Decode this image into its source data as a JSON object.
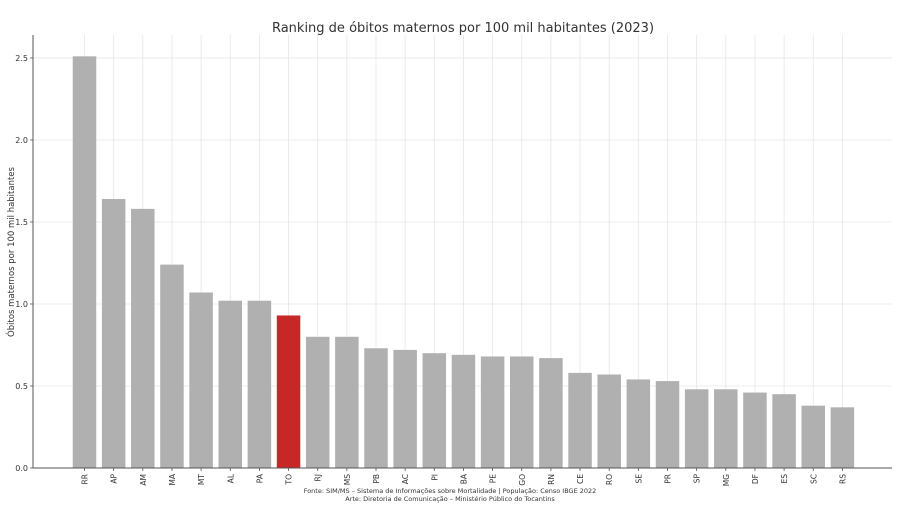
{
  "chart_data": {
    "type": "bar",
    "title": "Ranking de óbitos maternos por 100 mil habitantes (2023)",
    "xlabel": "",
    "ylabel": "Óbitos maternos por 100 mil habitantes",
    "ylim": [
      0,
      2.64
    ],
    "yticks": [
      0.0,
      0.5,
      1.0,
      1.5,
      2.0,
      2.5
    ],
    "ytick_labels": [
      "0.0",
      "0.5",
      "1.0",
      "1.5",
      "2.0",
      "2.5"
    ],
    "grid": true,
    "categories": [
      "RR",
      "AP",
      "AM",
      "MA",
      "MT",
      "AL",
      "PA",
      "TO",
      "RJ",
      "MS",
      "PB",
      "AC",
      "PI",
      "BA",
      "PE",
      "GO",
      "RN",
      "CE",
      "RO",
      "SE",
      "PR",
      "SP",
      "MG",
      "DF",
      "ES",
      "SC",
      "RS"
    ],
    "values": [
      2.51,
      1.64,
      1.58,
      1.24,
      1.07,
      1.02,
      1.02,
      0.93,
      0.8,
      0.8,
      0.73,
      0.72,
      0.7,
      0.69,
      0.68,
      0.68,
      0.67,
      0.58,
      0.57,
      0.54,
      0.53,
      0.48,
      0.48,
      0.46,
      0.45,
      0.38,
      0.37
    ],
    "highlight": "TO",
    "colors": {
      "bar": "#b0b0b0",
      "highlight": "#c62828",
      "grid": "#e6e6e6",
      "axis": "#555555"
    }
  },
  "footer": {
    "source": "Fonte: SIM/MS – Sistema de Informações sobre Mortalidade | População: Censo IBGE 2022",
    "credit": "Arte: Diretoria de Comunicação – Ministério Público do Tocantins"
  }
}
